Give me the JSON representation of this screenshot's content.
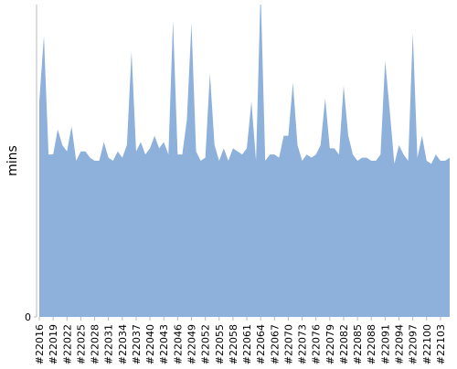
{
  "chart_data": {
    "type": "area",
    "y_label": "mins",
    "color": "#8eb1dc",
    "categories": [
      "#22016",
      null,
      null,
      "#22019",
      null,
      null,
      "#22022",
      null,
      null,
      "#22025",
      null,
      null,
      "#22028",
      null,
      null,
      "#22031",
      null,
      null,
      "#22034",
      null,
      null,
      "#22037",
      null,
      null,
      "#22040",
      null,
      null,
      "#22043",
      null,
      null,
      "#22046",
      null,
      null,
      "#22049",
      null,
      null,
      "#22052",
      null,
      null,
      "#22055",
      null,
      null,
      "#22058",
      null,
      null,
      "#22061",
      null,
      null,
      "#22064",
      null,
      null,
      "#22067",
      null,
      null,
      "#22070",
      null,
      null,
      "#22073",
      null,
      null,
      "#22076",
      null,
      null,
      "#22079",
      null,
      null,
      "#22082",
      null,
      null,
      "#22085",
      null,
      null,
      "#22088",
      null,
      null,
      "#22091",
      null,
      null,
      "#22094",
      null,
      null,
      "#22097",
      null,
      null,
      "#22100",
      null,
      null,
      "#22103",
      null,
      null
    ],
    "values": [
      69,
      90,
      52,
      52,
      60,
      55,
      53,
      61,
      50,
      53,
      53,
      51,
      50,
      50,
      56,
      51,
      50,
      53,
      51,
      55,
      85,
      53,
      56,
      52,
      54,
      58,
      54,
      56,
      52,
      95,
      52,
      52,
      63,
      94,
      53,
      50,
      51,
      78,
      55,
      50,
      54,
      50,
      54,
      53,
      52,
      54,
      69,
      50,
      105,
      50,
      52,
      52,
      51,
      58,
      58,
      75,
      55,
      50,
      52,
      51,
      52,
      55,
      70,
      54,
      54,
      52,
      74,
      58,
      52,
      50,
      51,
      51,
      50,
      50,
      52,
      82,
      66,
      49,
      55,
      52,
      50,
      91,
      51,
      58,
      50,
      49,
      52,
      50,
      50,
      51
    ],
    "ylim": [
      0,
      100
    ],
    "yticks": [
      0
    ]
  }
}
